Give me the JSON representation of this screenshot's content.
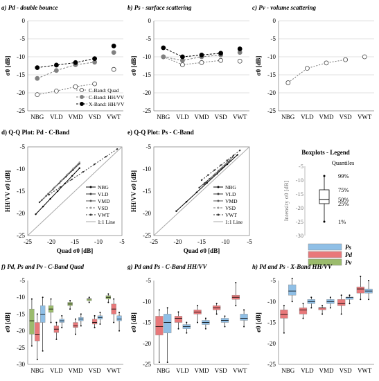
{
  "figure": {
    "background": "#ffffff",
    "colors": {
      "red": "#e8787a",
      "blue": "#8fbfe6",
      "green": "#9bbb6c",
      "gray": "#b3b3b3",
      "dark": "#555555"
    }
  },
  "chart_data": [
    {
      "type": "line",
      "title": "a) Pd - double bounce",
      "ylabel": "σ0 [dB]",
      "categories": [
        "NBG",
        "VLD",
        "VMD",
        "VSD",
        "VWT"
      ],
      "ylim": [
        -25,
        0
      ],
      "yticks": [
        "0",
        "-5",
        "-10",
        "-15",
        "-20",
        "-25"
      ],
      "series": [
        {
          "name": "C-Band: Quad",
          "style": "open-dashed",
          "values": [
            -20.5,
            -19.5,
            -18.3,
            -17.5,
            -13.5
          ]
        },
        {
          "name": "C-Band: HH/VV",
          "style": "gray-dashed",
          "values": [
            -16,
            -13.8,
            -12.2,
            -11.5,
            -8.8
          ]
        },
        {
          "name": "X-Band: HH/VV",
          "style": "black-dashed",
          "values": [
            -13,
            -12.3,
            -11.6,
            -10.5,
            -7
          ]
        }
      ],
      "legend": "bottom-right"
    },
    {
      "type": "line",
      "title": "b) Ps - surface scattering",
      "ylabel": "σ0 [dB]",
      "categories": [
        "NBG",
        "VLD",
        "VMD",
        "VSD",
        "VWT"
      ],
      "ylim": [
        -25,
        0
      ],
      "yticks": [
        "0",
        "-5",
        "-10",
        "-15",
        "-20",
        "-25"
      ],
      "series": [
        {
          "style": "open-dashed",
          "values": [
            -10,
            -12.2,
            -11.6,
            -11,
            -11.2
          ]
        },
        {
          "style": "gray-dashed",
          "values": [
            -10,
            -11,
            -10,
            -9.5,
            -8.8
          ]
        },
        {
          "style": "black-dashed",
          "values": [
            -7.5,
            -10,
            -9.5,
            -9,
            -7.8
          ]
        }
      ]
    },
    {
      "type": "line",
      "title": "c) Pv - volume scattering",
      "ylabel": "σ0 [dB]",
      "categories": [
        "NBG",
        "VLD",
        "VMD",
        "VSD",
        "VWT"
      ],
      "ylim": [
        -25,
        0
      ],
      "yticks": [
        "0",
        "-5",
        "-10",
        "-15",
        "-20",
        "-25"
      ],
      "series": [
        {
          "style": "open-dashed",
          "values": [
            -17.2,
            -13.2,
            -11.7,
            -10.8,
            -10
          ]
        }
      ]
    },
    {
      "type": "scatter",
      "title": "d) Q-Q Plot: Pd - C-Band",
      "xlabel": "Quad σ0 [dB]",
      "ylabel": "HH/VV σ0 [dB]",
      "xlim": [
        -25,
        -5
      ],
      "ylim": [
        -25,
        -5
      ],
      "xticks": [
        "-25",
        "-20",
        "-15",
        "-10",
        "-5"
      ],
      "yticks": [
        "-5",
        "-10",
        "-15",
        "-20",
        "-25"
      ],
      "legend_items": [
        "NBG",
        "VLD",
        "VMD",
        "VSD",
        "VWT",
        "1:1 Line"
      ],
      "series": [
        {
          "name": "NBG",
          "x": [
            -23.3,
            -14
          ],
          "y": [
            -20.2,
            -9.8
          ]
        },
        {
          "name": "VLD",
          "x": [
            -22.5,
            -14
          ],
          "y": [
            -17.5,
            -8.8
          ]
        },
        {
          "name": "VMD",
          "x": [
            -22,
            -14
          ],
          "y": [
            -17,
            -8.5
          ]
        },
        {
          "name": "VSD",
          "x": [
            -21.5,
            -14
          ],
          "y": [
            -16.5,
            -8.5
          ]
        },
        {
          "name": "VWT",
          "x": [
            -20.5,
            -6
          ],
          "y": [
            -15.8,
            -5.5
          ]
        }
      ]
    },
    {
      "type": "scatter",
      "title": "e) Q-Q Plot: Ps - C-Band",
      "xlabel": "Quad σ0 [dB]",
      "ylabel": "HH/VV σ0 [dB]",
      "xlim": [
        -25,
        -5
      ],
      "ylim": [
        -25,
        -5
      ],
      "xticks": [
        "-25",
        "-20",
        "-15",
        "-10",
        "-5"
      ],
      "yticks": [
        "-5",
        "-10",
        "-15",
        "-20",
        "-25"
      ],
      "legend_items": [
        "NBG",
        "VLD",
        "VMD",
        "VSD",
        "VWT",
        "1:1 Line"
      ],
      "series": [
        {
          "name": "NBG",
          "x": [
            -20.3,
            -7.5
          ],
          "y": [
            -19.5,
            -6.8
          ]
        },
        {
          "name": "VLD",
          "x": [
            -15.5,
            -9
          ],
          "y": [
            -14.2,
            -8.2
          ]
        },
        {
          "name": "VMD",
          "x": [
            -14.5,
            -8.5
          ],
          "y": [
            -13.5,
            -7.3
          ]
        },
        {
          "name": "VSD",
          "x": [
            -13.5,
            -9
          ],
          "y": [
            -12.5,
            -7.8
          ]
        },
        {
          "name": "VWT",
          "x": [
            -15,
            -7
          ],
          "y": [
            -12.5,
            -5.8
          ]
        }
      ]
    },
    {
      "type": "boxplot",
      "title": "f) Pd, Ps and Pv - C-Band Quad",
      "ylabel": "σ0 [dB]",
      "categories": [
        "NBG",
        "VLD",
        "VMD",
        "VSD",
        "VWT"
      ],
      "ylim": [
        -30,
        -5
      ],
      "yticks": [
        "-5",
        "-10",
        "-15",
        "-20",
        "-25",
        "-30"
      ],
      "boxes": [
        {
          "cat": 0,
          "series": "Pv",
          "q1": -21,
          "median": -17,
          "q3": -13.5,
          "min": -24.5,
          "max": -10.5
        },
        {
          "cat": 0,
          "series": "Pd",
          "q1": -23,
          "median": -21,
          "q3": -17.5,
          "min": -28.5,
          "max": -15
        },
        {
          "cat": 0,
          "series": "Ps",
          "q1": -17.5,
          "median": -15,
          "q3": -12.5,
          "min": -26,
          "max": -10
        },
        {
          "cat": 1,
          "series": "Pv",
          "q1": -14.5,
          "median": -13.5,
          "q3": -12.5,
          "min": -17.5,
          "max": -10.5
        },
        {
          "cat": 1,
          "series": "Pd",
          "q1": -20.5,
          "median": -19.5,
          "q3": -18.5,
          "min": -22.5,
          "max": -17.5
        },
        {
          "cat": 1,
          "series": "Ps",
          "q1": -17.5,
          "median": -17,
          "q3": -16.5,
          "min": -19,
          "max": -15.5
        },
        {
          "cat": 2,
          "series": "Pv",
          "q1": -12.5,
          "median": -12,
          "q3": -11.5,
          "min": -13.5,
          "max": -11
        },
        {
          "cat": 2,
          "series": "Pd",
          "q1": -19,
          "median": -18.5,
          "q3": -17.5,
          "min": -21,
          "max": -16.5
        },
        {
          "cat": 2,
          "series": "Ps",
          "q1": -17,
          "median": -16.5,
          "q3": -16,
          "min": -18.5,
          "max": -15
        },
        {
          "cat": 3,
          "series": "Pv",
          "q1": -11,
          "median": -10.5,
          "q3": -10.5,
          "min": -11.5,
          "max": -10
        },
        {
          "cat": 3,
          "series": "Pd",
          "q1": -18,
          "median": -17.5,
          "q3": -16.5,
          "min": -19,
          "max": -15.5
        },
        {
          "cat": 3,
          "series": "Ps",
          "q1": -16.5,
          "median": -16,
          "q3": -15.5,
          "min": -18,
          "max": -14.5
        },
        {
          "cat": 4,
          "series": "Pv",
          "q1": -10.5,
          "median": -10,
          "q3": -9.5,
          "min": -11.5,
          "max": -9
        },
        {
          "cat": 4,
          "series": "Pd",
          "q1": -15,
          "median": -13.5,
          "q3": -12,
          "min": -17.5,
          "max": -10.5
        },
        {
          "cat": 4,
          "series": "Ps",
          "q1": -17,
          "median": -16.5,
          "q3": -15.5,
          "min": -20,
          "max": -14.5
        }
      ]
    },
    {
      "type": "boxplot",
      "title": "g) Pd and Ps - C-Band HH/VV",
      "ylabel": "σ0 [dB]",
      "categories": [
        "NBG",
        "VLD",
        "VMD",
        "VSD",
        "VWT"
      ],
      "ylim": [
        -25,
        -5
      ],
      "yticks": [
        "-5",
        "-10",
        "-15",
        "-20",
        "-25"
      ],
      "boxes": [
        {
          "cat": 0,
          "series": "Pd",
          "q1": -18,
          "median": -16,
          "q3": -13.5,
          "min": -24.5,
          "max": -12
        },
        {
          "cat": 0,
          "series": "Ps",
          "q1": -17.5,
          "median": -15,
          "q3": -13,
          "min": -24.5,
          "max": -11.5
        },
        {
          "cat": 1,
          "series": "Pd",
          "q1": -15,
          "median": -14,
          "q3": -13.5,
          "min": -16.5,
          "max": -12.5
        },
        {
          "cat": 1,
          "series": "Ps",
          "q1": -16.5,
          "median": -16,
          "q3": -15.5,
          "min": -17.5,
          "max": -15
        },
        {
          "cat": 2,
          "series": "Pd",
          "q1": -13,
          "median": -12.5,
          "q3": -12,
          "min": -15,
          "max": -11
        },
        {
          "cat": 2,
          "series": "Ps",
          "q1": -15.5,
          "median": -15,
          "q3": -14.5,
          "min": -16.5,
          "max": -14
        },
        {
          "cat": 3,
          "series": "Pd",
          "q1": -12,
          "median": -11.5,
          "q3": -11,
          "min": -13,
          "max": -10.5
        },
        {
          "cat": 3,
          "series": "Ps",
          "q1": -15,
          "median": -14.5,
          "q3": -14,
          "min": -16,
          "max": -13.5
        },
        {
          "cat": 4,
          "series": "Pd",
          "q1": -9.5,
          "median": -9,
          "q3": -8.5,
          "min": -11,
          "max": -5.5
        },
        {
          "cat": 4,
          "series": "Ps",
          "q1": -14.5,
          "median": -14,
          "q3": -13,
          "min": -16,
          "max": -12
        }
      ]
    },
    {
      "type": "boxplot",
      "title": "h) Pd and Ps - X-Band HH/VV",
      "ylabel": "σ0 [dB]",
      "categories": [
        "NBG",
        "VLD",
        "VMD",
        "VSD",
        "VWT"
      ],
      "ylim": [
        -25,
        -5
      ],
      "yticks": [
        "-5",
        "-10",
        "-15",
        "-20",
        "-25"
      ],
      "boxes": [
        {
          "cat": 0,
          "series": "Pd",
          "q1": -14,
          "median": -13,
          "q3": -12,
          "min": -17.5,
          "max": -11
        },
        {
          "cat": 0,
          "series": "Ps",
          "q1": -8.5,
          "median": -7.5,
          "q3": -6,
          "min": -10,
          "max": -4.5
        },
        {
          "cat": 1,
          "series": "Pd",
          "q1": -13,
          "median": -12,
          "q3": -11.5,
          "min": -14,
          "max": -10.5
        },
        {
          "cat": 1,
          "series": "Ps",
          "q1": -10.5,
          "median": -10,
          "q3": -9.5,
          "min": -11.5,
          "max": -9
        },
        {
          "cat": 2,
          "series": "Pd",
          "q1": -12,
          "median": -11.5,
          "q3": -11.5,
          "min": -13,
          "max": -11
        },
        {
          "cat": 2,
          "series": "Ps",
          "q1": -10.5,
          "median": -10,
          "q3": -9.5,
          "min": -11.5,
          "max": -9
        },
        {
          "cat": 3,
          "series": "Pd",
          "q1": -11,
          "median": -10.5,
          "q3": -9.5,
          "min": -13,
          "max": -8.5
        },
        {
          "cat": 3,
          "series": "Ps",
          "q1": -9.5,
          "median": -9,
          "q3": -9,
          "min": -10.5,
          "max": -8.5
        },
        {
          "cat": 4,
          "series": "Pd",
          "q1": -8,
          "median": -7,
          "q3": -6.5,
          "min": -9.5,
          "max": -4
        },
        {
          "cat": 4,
          "series": "Ps",
          "q1": -8,
          "median": -7.5,
          "q3": -7,
          "min": -9.5,
          "max": -5
        }
      ]
    }
  ],
  "boxplots_legend": {
    "title": "Boxplots - Legend",
    "subtitle": "Quantiles",
    "ylabel": "Intensity σ0 [dB]",
    "ylim": [
      -30,
      -5
    ],
    "yticks": [
      "-5",
      "-10",
      "-15",
      "-20",
      "-25",
      "-30"
    ],
    "quantiles": [
      {
        "label": "99%",
        "value": -8.5
      },
      {
        "label": "75%",
        "value": -13.5
      },
      {
        "label": "50%",
        "value": -17
      },
      {
        "label": "25%",
        "value": -18.5
      },
      {
        "label": "1%",
        "value": -25
      }
    ],
    "entries": [
      {
        "label": "Ps",
        "color": "#8fbfe6"
      },
      {
        "label": "Pd",
        "color": "#e8787a"
      },
      {
        "label": "Pv",
        "color": "#9bbb6c"
      }
    ]
  }
}
